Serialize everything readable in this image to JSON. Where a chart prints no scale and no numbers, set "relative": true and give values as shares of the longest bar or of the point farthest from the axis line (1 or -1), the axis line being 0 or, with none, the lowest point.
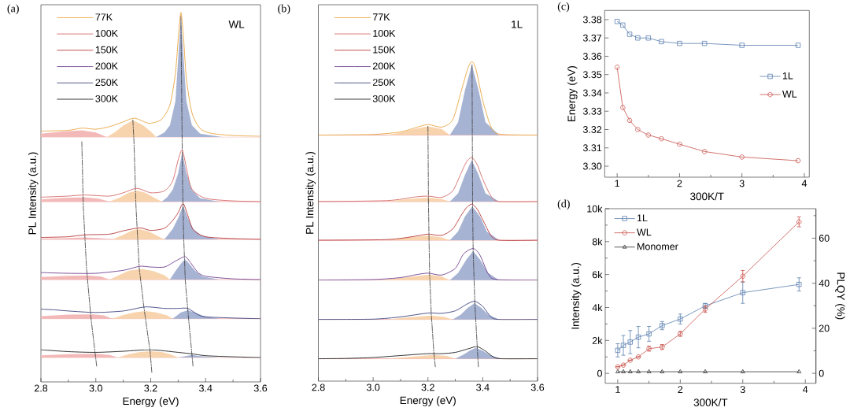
{
  "chart_data": [
    {
      "type": "line",
      "title": "(a)",
      "xlabel": "Energy (eV)",
      "ylabel": "PL Intensity (a.u.)",
      "annotations": [
        "WL"
      ],
      "relative": true,
      "legend": "top left",
      "xlim": [
        2.8,
        3.6
      ],
      "xticks": [
        2.8,
        {
          "value": 2.9,
          "label": null
        },
        {
          "value": 3.0,
          "label": "3.0"
        },
        {
          "value": 3.1,
          "label": null
        },
        3.2,
        {
          "value": 3.3,
          "label": null
        },
        3.4,
        {
          "value": 3.5,
          "label": null
        },
        3.6
      ],
      "ref_lines": [
        {
          "axis": "y",
          "value": 0.663,
          "color": "#e58080"
        },
        {
          "axis": "y",
          "value": 0.488,
          "color": "#e58080"
        },
        {
          "axis": "y",
          "value": 0.386,
          "color": "#e58080"
        },
        {
          "axis": "y",
          "value": 0.277,
          "color": "#e58080"
        },
        {
          "axis": "y",
          "value": 0.171,
          "color": "#e58080"
        },
        {
          "axis": "y",
          "value": 0.066,
          "color": "#e58080"
        }
      ],
      "series": [
        {
          "type": "area",
          "color": "#f3b9b9",
          "x": [
            2.8,
            2.8,
            2.88,
            2.95,
            3.0,
            3.04,
            null,
            2.8,
            2.8,
            2.88,
            2.96,
            3.01,
            3.05,
            null,
            2.8,
            2.8,
            2.88,
            2.96,
            3.02,
            3.06,
            null,
            2.8,
            2.8,
            2.9,
            2.97,
            3.02,
            3.05,
            null,
            2.8,
            2.8,
            2.9,
            2.99,
            3.03,
            3.06,
            null,
            2.8,
            2.8,
            2.9,
            3.0,
            3.05,
            3.08
          ],
          "values": [
            0.663,
            0.672,
            0.678,
            0.681,
            0.675,
            0.663,
            null,
            0.488,
            0.494,
            0.498,
            0.5,
            0.496,
            0.488,
            null,
            0.386,
            0.388,
            0.389,
            0.391,
            0.389,
            0.386,
            null,
            0.277,
            0.284,
            0.287,
            0.288,
            0.285,
            0.277,
            null,
            0.171,
            0.178,
            0.182,
            0.183,
            0.18,
            0.171,
            null,
            0.066,
            0.072,
            0.075,
            0.076,
            0.073,
            0.066
          ]
        },
        {
          "type": "area",
          "color": "#f8d4ae",
          "x": [
            3.04,
            3.07,
            3.1,
            3.135,
            3.17,
            3.2,
            3.22,
            null,
            3.05,
            3.09,
            3.12,
            3.15,
            3.18,
            3.21,
            3.24,
            null,
            3.06,
            3.1,
            3.13,
            3.155,
            3.19,
            3.22,
            3.25,
            null,
            3.05,
            3.09,
            3.12,
            3.165,
            3.21,
            3.25,
            3.27,
            null,
            3.06,
            3.1,
            3.14,
            3.18,
            3.22,
            3.26,
            3.28,
            null,
            3.08,
            3.12,
            3.16,
            3.2,
            3.24,
            3.27,
            3.3
          ],
          "values": [
            0.663,
            0.676,
            0.694,
            0.708,
            0.696,
            0.678,
            0.663,
            null,
            0.488,
            0.5,
            0.512,
            0.518,
            0.512,
            0.5,
            0.488,
            null,
            0.386,
            0.398,
            0.409,
            0.414,
            0.408,
            0.397,
            0.386,
            null,
            0.277,
            0.291,
            0.301,
            0.306,
            0.3,
            0.289,
            0.277,
            null,
            0.171,
            0.181,
            0.188,
            0.192,
            0.188,
            0.18,
            0.171,
            null,
            0.066,
            0.075,
            0.081,
            0.083,
            0.081,
            0.075,
            0.066
          ]
        },
        {
          "type": "area",
          "color": "#a7b3d3",
          "x": [
            3.22,
            3.25,
            3.27,
            3.29,
            3.31,
            3.33,
            3.35,
            3.38,
            3.46,
            null,
            3.24,
            3.26,
            3.28,
            3.3,
            3.315,
            3.33,
            3.35,
            3.38,
            3.45,
            null,
            3.25,
            3.28,
            3.3,
            3.318,
            3.335,
            3.355,
            3.385,
            3.45,
            null,
            3.27,
            3.29,
            3.31,
            3.325,
            3.34,
            3.36,
            3.39,
            3.45,
            null,
            3.28,
            3.31,
            3.335,
            3.36,
            3.39,
            3.45,
            null,
            3.3,
            3.35,
            3.39,
            3.45
          ],
          "values": [
            0.663,
            0.675,
            0.695,
            0.76,
            0.99,
            0.76,
            0.695,
            0.672,
            0.663,
            null,
            0.488,
            0.5,
            0.52,
            0.565,
            0.622,
            0.565,
            0.52,
            0.497,
            0.488,
            null,
            0.386,
            0.414,
            0.444,
            0.478,
            0.444,
            0.414,
            0.396,
            0.386,
            null,
            0.277,
            0.3,
            0.32,
            0.332,
            0.32,
            0.302,
            0.285,
            0.277,
            null,
            0.171,
            0.188,
            0.194,
            0.188,
            0.179,
            0.171,
            null,
            0.066,
            0.073,
            0.069,
            0.066
          ]
        },
        {
          "type": "line",
          "color": "#3a3a3a",
          "line_style": "dashed",
          "x": [
            2.949,
            2.954,
            2.966,
            2.982,
            3.003
          ],
          "values": [
            0.65,
            0.48,
            0.309,
            0.175,
            0.043
          ]
        },
        {
          "type": "line",
          "color": "#3a3a3a",
          "line_style": "dashed",
          "x": [
            3.135,
            3.139,
            3.146,
            3.158,
            3.175,
            3.198,
            3.204
          ],
          "values": [
            0.709,
            0.65,
            0.48,
            0.309,
            0.203,
            0.081,
            0.026
          ]
        },
        {
          "type": "line",
          "color": "#3a3a3a",
          "line_style": "dashed",
          "x": [
            3.31,
            3.316,
            3.32,
            3.326,
            3.338,
            3.354
          ],
          "values": [
            0.991,
            0.537,
            0.394,
            0.273,
            0.171,
            0.043
          ]
        },
        {
          "name": "77K",
          "color": "#e9a541",
          "x": [
            2.8,
            2.9,
            2.95,
            3.0,
            3.05,
            3.1,
            3.14,
            3.18,
            3.2,
            3.24,
            3.27,
            3.29,
            3.3,
            3.31,
            3.32,
            3.33,
            3.35,
            3.38,
            3.42,
            3.5,
            3.6
          ],
          "values": [
            0.679,
            0.681,
            0.687,
            0.684,
            0.691,
            0.704,
            0.714,
            0.703,
            0.7,
            0.711,
            0.75,
            0.835,
            0.927,
            1.0,
            0.927,
            0.821,
            0.729,
            0.686,
            0.673,
            0.667,
            0.665
          ]
        },
        {
          "name": "100K",
          "color": "#d46a68",
          "x": [
            2.8,
            2.9,
            2.96,
            3.05,
            3.1,
            3.15,
            3.2,
            3.25,
            3.28,
            3.3,
            3.315,
            3.33,
            3.35,
            3.4,
            3.5,
            3.6
          ],
          "values": [
            0.5,
            0.503,
            0.506,
            0.503,
            0.512,
            0.524,
            0.512,
            0.517,
            0.544,
            0.601,
            0.628,
            0.579,
            0.522,
            0.497,
            0.49,
            0.488
          ]
        },
        {
          "name": "150K",
          "color": "#b8383a",
          "x": [
            2.8,
            2.9,
            2.96,
            3.05,
            3.1,
            3.16,
            3.2,
            3.25,
            3.28,
            3.3,
            3.318,
            3.335,
            3.355,
            3.4,
            3.5,
            3.6
          ],
          "values": [
            0.391,
            0.393,
            0.398,
            0.4,
            0.409,
            0.417,
            0.41,
            0.416,
            0.437,
            0.458,
            0.483,
            0.451,
            0.412,
            0.393,
            0.388,
            0.386
          ]
        },
        {
          "name": "200K",
          "color": "#70418f",
          "x": [
            2.8,
            2.9,
            3.0,
            3.1,
            3.16,
            3.2,
            3.25,
            3.29,
            3.325,
            3.345,
            3.37,
            3.4,
            3.5,
            3.6
          ],
          "values": [
            0.296,
            0.294,
            0.294,
            0.302,
            0.313,
            0.311,
            0.311,
            0.327,
            0.339,
            0.323,
            0.298,
            0.286,
            0.279,
            0.277
          ]
        },
        {
          "name": "250K",
          "color": "#3d437e",
          "x": [
            2.8,
            2.85,
            2.9,
            3.0,
            3.1,
            3.18,
            3.25,
            3.3,
            3.335,
            3.37,
            3.4,
            3.5,
            3.6
          ],
          "values": [
            0.197,
            0.195,
            0.192,
            0.188,
            0.192,
            0.203,
            0.199,
            0.199,
            0.199,
            0.183,
            0.176,
            0.173,
            0.171
          ]
        },
        {
          "name": "300K",
          "color": "#1e1e1e",
          "x": [
            2.8,
            2.9,
            3.0,
            3.1,
            3.2,
            3.3,
            3.35,
            3.4,
            3.5,
            3.6
          ],
          "values": [
            0.087,
            0.082,
            0.08,
            0.083,
            0.087,
            0.08,
            0.076,
            0.071,
            0.068,
            0.066
          ]
        }
      ]
    },
    {
      "type": "line",
      "title": "(b)",
      "xlabel": "Energy (eV)",
      "ylabel": "PL Intensity (a.u.)",
      "annotations": [
        "1L"
      ],
      "relative": true,
      "legend": "top left",
      "xlim": [
        2.8,
        3.6
      ],
      "xticks": [
        2.8,
        {
          "value": 2.9,
          "label": null
        },
        {
          "value": 3.0,
          "label": "3.0"
        },
        {
          "value": 3.1,
          "label": null
        },
        3.2,
        {
          "value": 3.3,
          "label": null
        },
        3.4,
        {
          "value": 3.5,
          "label": null
        },
        3.6
      ],
      "ref_lines": [
        {
          "axis": "y",
          "value": 0.77,
          "color": "#e58080"
        },
        {
          "axis": "y",
          "value": 0.562,
          "color": "#e58080"
        },
        {
          "axis": "y",
          "value": 0.441,
          "color": "#e58080"
        },
        {
          "axis": "y",
          "value": 0.316,
          "color": "#e58080"
        },
        {
          "axis": "y",
          "value": 0.193,
          "color": "#e58080"
        },
        {
          "axis": "y",
          "value": 0.07,
          "color": "#e58080"
        }
      ],
      "series": [
        {
          "type": "area",
          "color": "#f8d4ae",
          "x": [
            3.05,
            3.1,
            3.15,
            3.2,
            3.25,
            3.28,
            null,
            3.05,
            3.12,
            3.2,
            3.25,
            3.28,
            null,
            3.05,
            3.12,
            3.2,
            3.25,
            3.28,
            null,
            3.02,
            3.1,
            3.205,
            3.25,
            3.28,
            null,
            3.05,
            3.12,
            3.21,
            3.26,
            3.29,
            null,
            3.05,
            3.13,
            3.22,
            3.27,
            3.3
          ],
          "values": [
            0.77,
            0.778,
            0.789,
            0.797,
            0.789,
            0.77,
            null,
            0.562,
            0.569,
            0.574,
            0.57,
            0.562,
            null,
            0.441,
            0.45,
            0.455,
            0.45,
            0.441,
            null,
            0.316,
            0.323,
            0.333,
            0.328,
            0.316,
            null,
            0.193,
            0.199,
            0.205,
            0.201,
            0.193,
            null,
            0.07,
            0.076,
            0.082,
            0.079,
            0.07
          ]
        },
        {
          "type": "area",
          "color": "#a7b3d3",
          "x": [
            3.28,
            3.31,
            3.335,
            3.36,
            3.385,
            3.41,
            3.46,
            null,
            3.28,
            3.31,
            3.335,
            3.36,
            3.385,
            3.41,
            3.46,
            null,
            3.28,
            3.31,
            3.335,
            3.362,
            3.39,
            3.415,
            3.46,
            null,
            3.28,
            3.31,
            3.34,
            3.365,
            3.39,
            3.42,
            3.46,
            null,
            3.29,
            3.32,
            3.345,
            3.37,
            3.395,
            3.42,
            3.46,
            null,
            3.3,
            3.33,
            3.355,
            3.375,
            3.4,
            3.43,
            3.47
          ],
          "values": [
            0.77,
            0.81,
            0.91,
            0.99,
            0.91,
            0.81,
            0.77,
            null,
            0.562,
            0.588,
            0.645,
            0.692,
            0.645,
            0.588,
            0.562,
            null,
            0.441,
            0.468,
            0.515,
            0.547,
            0.515,
            0.468,
            0.441,
            null,
            0.316,
            0.338,
            0.38,
            0.407,
            0.38,
            0.338,
            0.316,
            null,
            0.193,
            0.208,
            0.229,
            0.244,
            0.229,
            0.208,
            0.193,
            null,
            0.07,
            0.083,
            0.097,
            0.104,
            0.095,
            0.08,
            0.07
          ]
        },
        {
          "type": "line",
          "color": "#3a3a3a",
          "line_style": "dashed",
          "x": [
            3.2,
            3.202,
            3.206,
            3.212,
            3.222,
            3.227
          ],
          "values": [
            0.797,
            0.55,
            0.336,
            0.213,
            0.084,
            0.045
          ]
        },
        {
          "type": "line",
          "color": "#3a3a3a",
          "line_style": "dashed",
          "x": [
            3.361,
            3.363,
            3.365,
            3.371,
            3.38,
            3.384
          ],
          "values": [
            0.99,
            0.55,
            0.41,
            0.246,
            0.107,
            0.045
          ]
        },
        {
          "name": "77K",
          "color": "#e9a541",
          "x": [
            2.8,
            3.0,
            3.1,
            3.15,
            3.2,
            3.25,
            3.29,
            3.32,
            3.345,
            3.36,
            3.375,
            3.4,
            3.43,
            3.46,
            3.6
          ],
          "values": [
            0.77,
            0.772,
            0.78,
            0.792,
            0.803,
            0.795,
            0.817,
            0.903,
            0.977,
            1.0,
            0.977,
            0.878,
            0.796,
            0.773,
            0.77
          ]
        },
        {
          "name": "100K",
          "color": "#d46a68",
          "x": [
            2.8,
            3.05,
            3.15,
            3.2,
            3.25,
            3.29,
            3.32,
            3.34,
            3.36,
            3.38,
            3.4,
            3.43,
            3.46,
            3.6
          ],
          "values": [
            0.562,
            0.565,
            0.576,
            0.579,
            0.575,
            0.595,
            0.649,
            0.685,
            0.7,
            0.677,
            0.632,
            0.579,
            0.562,
            0.562
          ]
        },
        {
          "name": "150K",
          "color": "#b8383a",
          "x": [
            2.8,
            3.05,
            3.15,
            3.2,
            3.25,
            3.29,
            3.32,
            3.34,
            3.36,
            3.38,
            3.4,
            3.43,
            3.46,
            3.6
          ],
          "values": [
            0.441,
            0.443,
            0.453,
            0.46,
            0.456,
            0.476,
            0.517,
            0.542,
            0.554,
            0.538,
            0.505,
            0.456,
            0.441,
            0.441
          ]
        },
        {
          "name": "200K",
          "color": "#70418f",
          "x": [
            2.8,
            3.0,
            3.1,
            3.15,
            3.2,
            3.25,
            3.3,
            3.33,
            3.365,
            3.39,
            3.42,
            3.45,
            3.6
          ],
          "values": [
            0.316,
            0.318,
            0.324,
            0.332,
            0.338,
            0.332,
            0.353,
            0.398,
            0.415,
            0.394,
            0.336,
            0.318,
            0.316
          ]
        },
        {
          "name": "250K",
          "color": "#3d437e",
          "x": [
            2.8,
            3.0,
            3.1,
            3.2,
            3.25,
            3.3,
            3.34,
            3.37,
            3.4,
            3.43,
            3.46,
            3.6
          ],
          "values": [
            0.193,
            0.194,
            0.201,
            0.213,
            0.212,
            0.22,
            0.24,
            0.25,
            0.234,
            0.201,
            0.193,
            0.193
          ]
        },
        {
          "name": "300K",
          "color": "#1e1e1e",
          "x": [
            2.8,
            2.9,
            3.0,
            3.1,
            3.2,
            3.25,
            3.3,
            3.35,
            3.38,
            3.41,
            3.44,
            3.47,
            3.6
          ],
          "values": [
            0.07,
            0.071,
            0.074,
            0.08,
            0.086,
            0.086,
            0.09,
            0.102,
            0.108,
            0.094,
            0.075,
            0.07,
            0.07
          ]
        }
      ]
    },
    {
      "type": "line",
      "title": "(c)",
      "xlabel": "300K/T",
      "ylabel": "Energy (eV)",
      "legend": "right",
      "xlim": [
        0.8,
        4.08
      ],
      "xticks": [
        1,
        {
          "value": 1.5,
          "label": null
        },
        2,
        {
          "value": 2.5,
          "label": null
        },
        3,
        {
          "value": 3.5,
          "label": null
        },
        4
      ],
      "ylim": [
        3.294,
        3.385
      ],
      "yticks": [
        {
          "value": 3.3,
          "label": "3.30"
        },
        3.31,
        3.32,
        3.33,
        3.34,
        3.35,
        3.36,
        3.37,
        3.38
      ],
      "series": [
        {
          "name": "1L",
          "color": "#5a7fae",
          "marker": "square",
          "x": [
            1,
            1.09,
            1.2,
            1.33,
            1.5,
            1.71,
            2,
            2.4,
            3,
            3.9
          ],
          "values": [
            3.379,
            3.377,
            3.372,
            3.37,
            3.37,
            3.368,
            3.367,
            3.367,
            3.366,
            3.366
          ]
        },
        {
          "name": "WL",
          "color": "#c8504a",
          "marker": "circle",
          "x": [
            1,
            1.09,
            1.2,
            1.33,
            1.5,
            1.71,
            2,
            2.4,
            3,
            3.9
          ],
          "values": [
            3.354,
            3.332,
            3.325,
            3.32,
            3.317,
            3.315,
            3.312,
            3.308,
            3.305,
            3.303
          ]
        }
      ]
    },
    {
      "type": "line",
      "title": "(d)",
      "xlabel": "300K/T",
      "ylabel": "Intensity (a.u.)",
      "y2label": "PLQY (%)",
      "legend": "top left",
      "xlim": [
        0.8,
        4.17
      ],
      "xticks": [
        1,
        {
          "value": 1.5,
          "label": null
        },
        2,
        {
          "value": 2.5,
          "label": null
        },
        3,
        {
          "value": 3.5,
          "label": null
        },
        4
      ],
      "ylim": [
        -600,
        10000
      ],
      "yticks": [
        0,
        {
          "value": 1000,
          "label": null
        },
        {
          "value": 2000,
          "label": "2k"
        },
        {
          "value": 3000,
          "label": null
        },
        {
          "value": 4000,
          "label": "4k"
        },
        {
          "value": 5000,
          "label": null
        },
        {
          "value": 6000,
          "label": "6k"
        },
        {
          "value": 7000,
          "label": null
        },
        {
          "value": 8000,
          "label": "8k"
        },
        {
          "value": 9000,
          "label": null
        },
        {
          "value": 10000,
          "label": "10k"
        }
      ],
      "y2lim": [
        -4.4,
        73.1
      ],
      "y2ticks": [
        0,
        {
          "value": 10,
          "label": null
        },
        20,
        {
          "value": 30,
          "label": null
        },
        40,
        {
          "value": 50,
          "label": null
        },
        60,
        {
          "value": 70,
          "label": null
        }
      ],
      "series": [
        {
          "name": "1L",
          "color": "#5a7fae",
          "marker": "square",
          "x": [
            1,
            1.09,
            1.2,
            1.33,
            1.5,
            1.71,
            2,
            2.4,
            3,
            3.9
          ],
          "values": [
            1400,
            1700,
            1900,
            2200,
            2400,
            2900,
            3300,
            4100,
            4900,
            5400
          ],
          "errors": [
            400,
            600,
            700,
            650,
            450,
            250,
            300,
            150,
            650,
            400
          ]
        },
        {
          "name": "WL",
          "color": "#c8504a",
          "marker": "circle",
          "x": [
            1,
            1.09,
            1.2,
            1.33,
            1.5,
            1.71,
            2,
            2.4,
            3,
            3.9
          ],
          "values": [
            400,
            500,
            800,
            1000,
            1500,
            1600,
            2400,
            3900,
            5900,
            9200
          ],
          "errors": [
            null,
            null,
            null,
            null,
            150,
            150,
            150,
            200,
            350,
            300
          ]
        },
        {
          "name": "Monomer",
          "color": "#333333",
          "marker": "triangle",
          "x": [
            1,
            1.09,
            1.2,
            1.33,
            1.5,
            1.71,
            2,
            2.4,
            3,
            3.9
          ],
          "values": [
            100,
            100,
            100,
            100,
            100,
            100,
            100,
            100,
            100,
            100
          ]
        }
      ]
    }
  ]
}
